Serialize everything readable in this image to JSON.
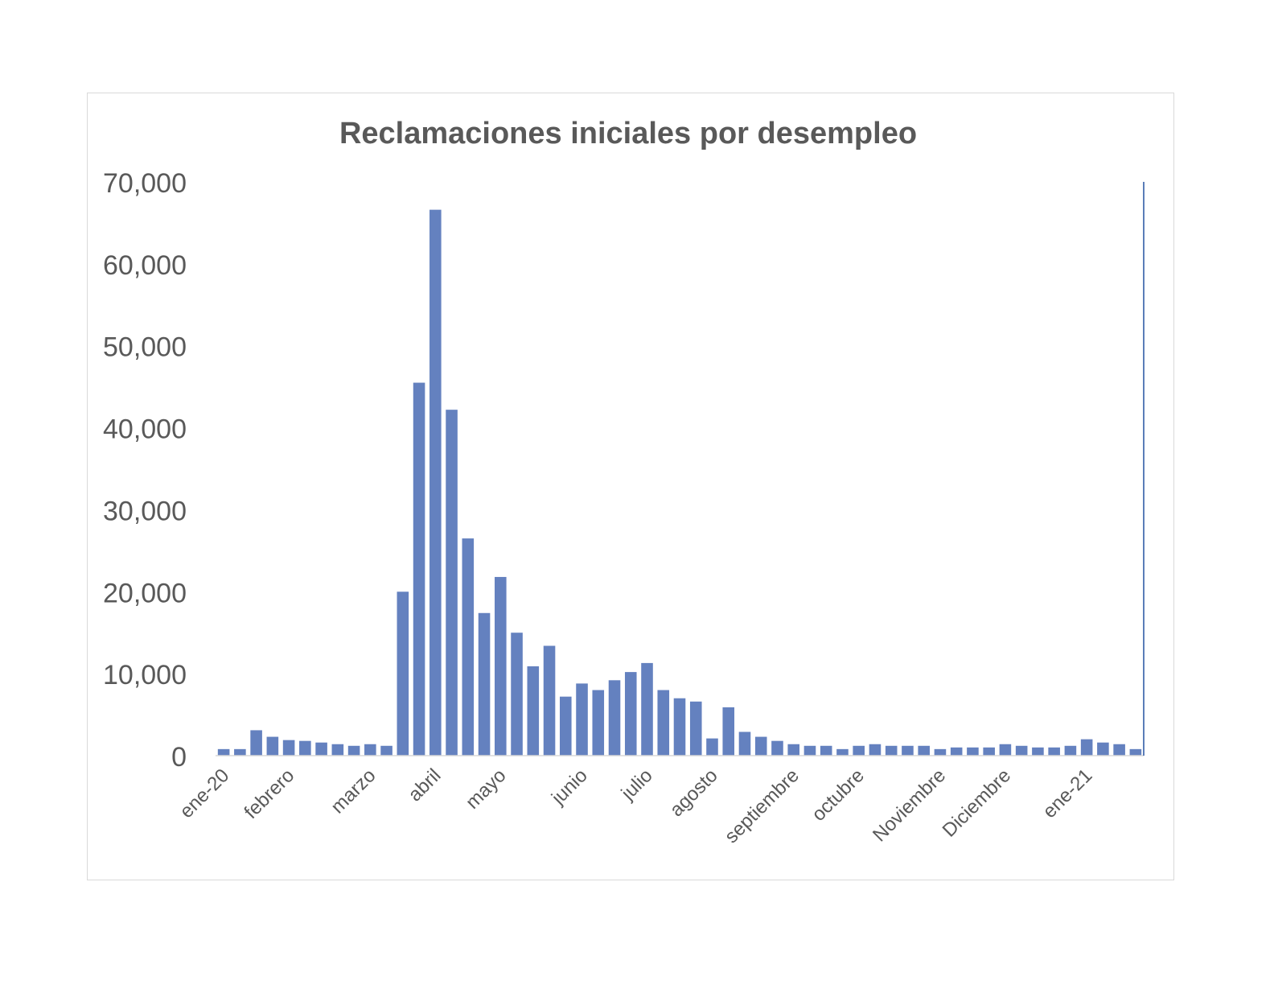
{
  "chart_data": {
    "type": "bar",
    "title": "Reclamaciones iniciales por desempleo",
    "xlabel": "",
    "ylabel": "",
    "ylim": [
      0,
      70000
    ],
    "yticks": [
      0,
      10000,
      20000,
      30000,
      40000,
      50000,
      60000,
      70000
    ],
    "ytick_labels": [
      "0",
      "10,000",
      "20,000",
      "30,000",
      "40,000",
      "50,000",
      "60,000",
      "70,000"
    ],
    "grid": false,
    "legend": "none",
    "bar_color": "#6481bf",
    "axis_color": "#5b7db8",
    "values": [
      800,
      800,
      3100,
      2300,
      1900,
      1800,
      1600,
      1400,
      1200,
      1400,
      1200,
      20000,
      45500,
      66600,
      42200,
      26500,
      17400,
      21800,
      15000,
      10900,
      13400,
      7200,
      8800,
      8000,
      9200,
      10200,
      11300,
      8000,
      7000,
      6600,
      2100,
      5900,
      2900,
      2300,
      1800,
      1400,
      1200,
      1200,
      800,
      1200,
      1400,
      1200,
      1200,
      1200,
      800,
      1000,
      1000,
      1000,
      1400,
      1200,
      1000,
      1000,
      1200,
      2000,
      1600,
      1400,
      800
    ],
    "x_tick_labels": [
      {
        "label": "ene-20",
        "index": 0
      },
      {
        "label": "febrero",
        "index": 4
      },
      {
        "label": "marzo",
        "index": 9
      },
      {
        "label": "abril",
        "index": 13
      },
      {
        "label": "mayo",
        "index": 17
      },
      {
        "label": "junio",
        "index": 22
      },
      {
        "label": "julio",
        "index": 26
      },
      {
        "label": "agosto",
        "index": 30
      },
      {
        "label": "septiembre",
        "index": 35
      },
      {
        "label": "octubre",
        "index": 39
      },
      {
        "label": "Noviembre",
        "index": 44
      },
      {
        "label": "Diciembre",
        "index": 48
      },
      {
        "label": "ene-21",
        "index": 53
      }
    ]
  }
}
